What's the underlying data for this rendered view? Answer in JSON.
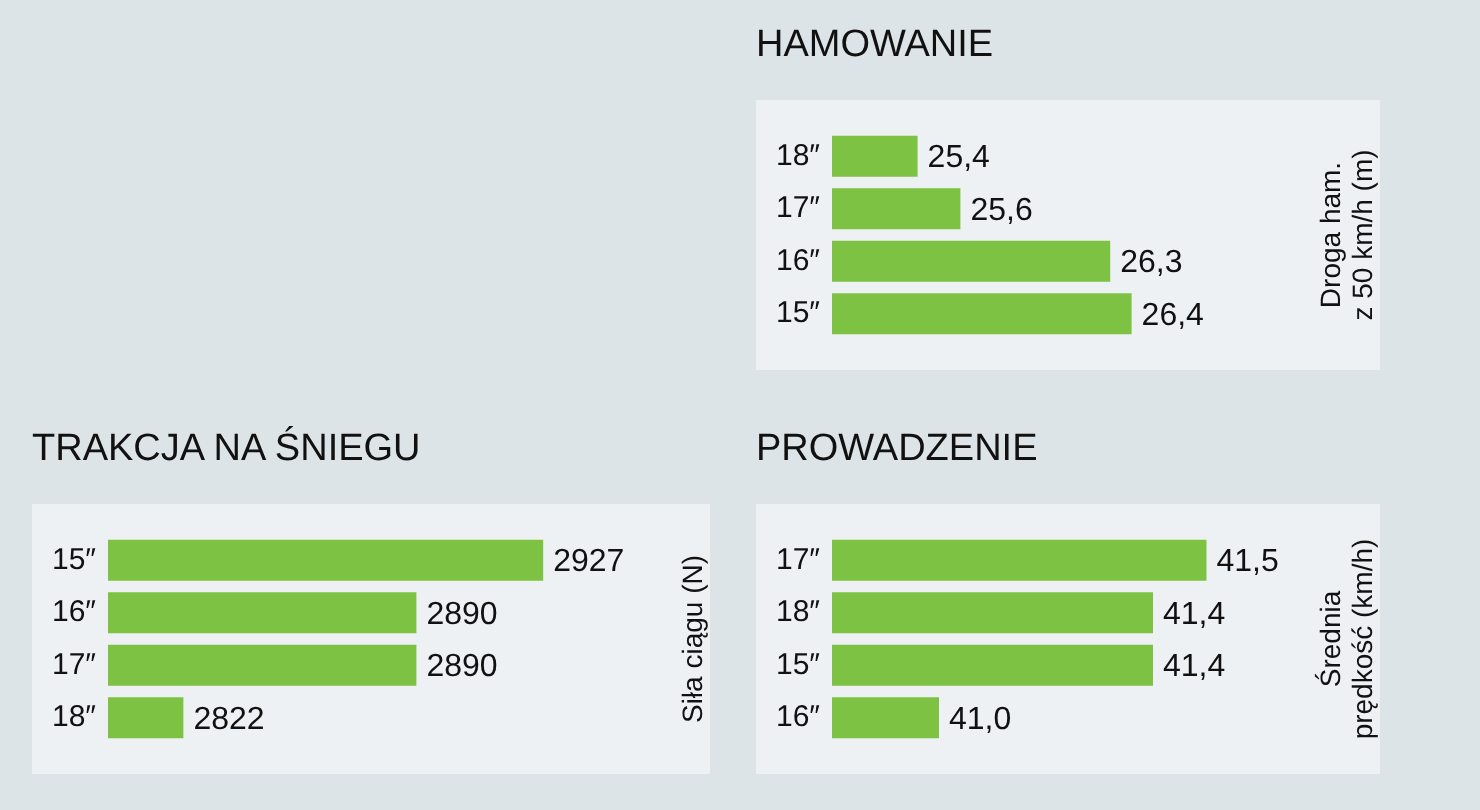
{
  "chart_data": [
    {
      "type": "bar",
      "orientation": "horizontal",
      "title": "HAMOWANIE",
      "ylabel": "Droga ham.\nz 50 km/h (m)",
      "categories": [
        "18″",
        "17″",
        "16″",
        "15″"
      ],
      "values": [
        25.4,
        25.6,
        26.3,
        26.4
      ],
      "value_labels": [
        "25,4",
        "25,6",
        "26,3",
        "26,4"
      ],
      "color": "#7dc242",
      "tick_labels": "y",
      "legend": false
    },
    {
      "type": "bar",
      "orientation": "horizontal",
      "title": "TRAKCJA NA ŚNIEGU",
      "ylabel": "Siła ciągu (N)",
      "categories": [
        "15″",
        "16″",
        "17″",
        "18″"
      ],
      "values": [
        2927,
        2890,
        2890,
        2822
      ],
      "value_labels": [
        "2927",
        "2890",
        "2890",
        "2822"
      ],
      "color": "#7dc242",
      "tick_labels": "y",
      "legend": false
    },
    {
      "type": "bar",
      "orientation": "horizontal",
      "title": "PROWADZENIE",
      "ylabel": "Średnia\nprędkość (km/h)",
      "categories": [
        "17″",
        "18″",
        "15″",
        "16″"
      ],
      "values": [
        41.5,
        41.4,
        41.4,
        41.0
      ],
      "value_labels": [
        "41,5",
        "41,4",
        "41,4",
        "41,0"
      ],
      "color": "#7dc242",
      "tick_labels": "y",
      "legend": false
    }
  ]
}
